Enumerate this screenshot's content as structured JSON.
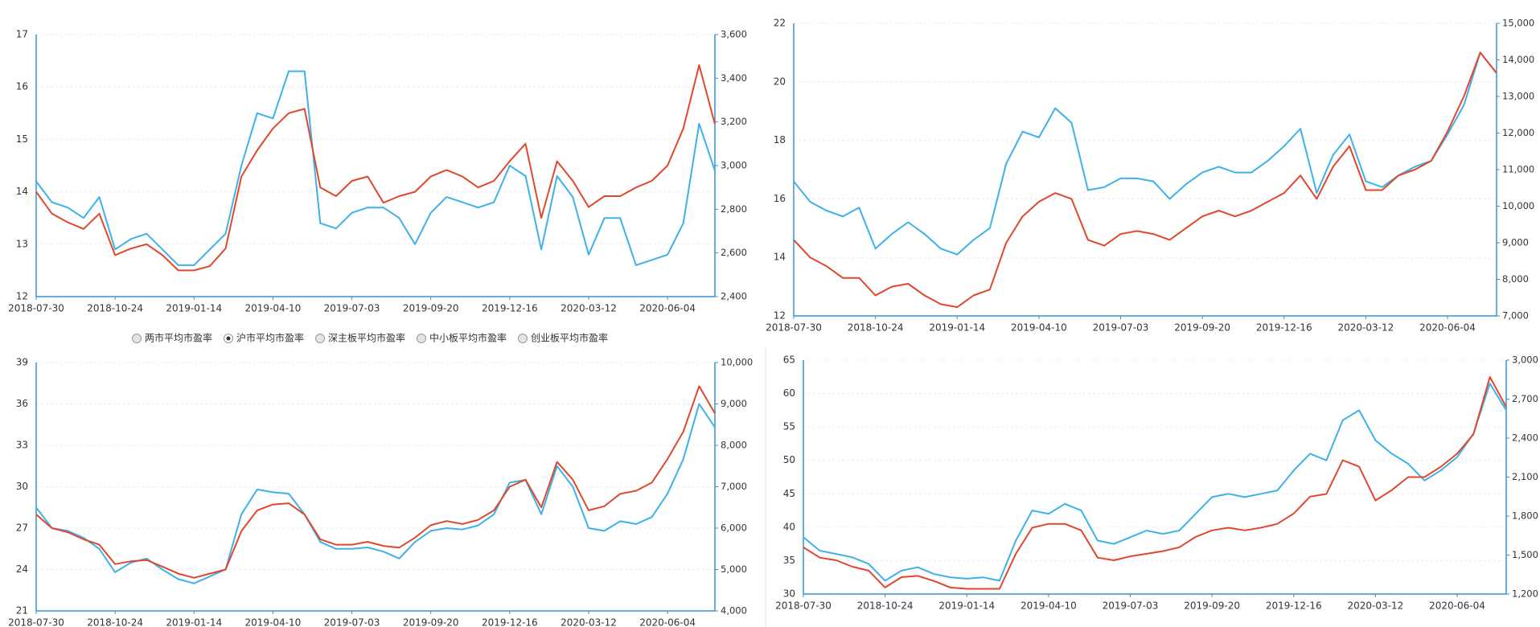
{
  "chart_data": [
    {
      "type": "line",
      "categories": [
        "2018-07-30",
        null,
        null,
        null,
        null,
        "2018-10-24",
        null,
        null,
        null,
        null,
        "2019-01-14",
        null,
        null,
        null,
        null,
        "2019-04-10",
        null,
        null,
        null,
        null,
        "2019-07-03",
        null,
        null,
        null,
        null,
        "2019-09-20",
        null,
        null,
        null,
        null,
        "2019-12-16",
        null,
        null,
        null,
        null,
        "2020-03-12",
        null,
        null,
        null,
        null,
        "2020-06-04",
        null,
        null,
        null
      ],
      "ylim": [
        12,
        17
      ],
      "yticks": [
        12,
        13,
        14,
        15,
        16,
        17
      ],
      "y2lim": [
        2400,
        3600
      ],
      "y2ticks": [
        {
          "value": 2400,
          "label": "2,400"
        },
        {
          "value": 2600,
          "label": "2,600"
        },
        {
          "value": 2800,
          "label": "2,800"
        },
        {
          "value": 3000,
          "label": "3,000"
        },
        {
          "value": 3200,
          "label": "3,200"
        },
        {
          "value": 3400,
          "label": "3,400"
        },
        {
          "value": 3600,
          "label": "3,600"
        }
      ],
      "grid": true,
      "series": [
        {
          "color": "#3eb1e8",
          "axis": "y",
          "values": [
            14.2,
            13.8,
            13.7,
            13.5,
            13.9,
            12.9,
            13.1,
            13.2,
            12.9,
            12.6,
            12.6,
            12.9,
            13.2,
            14.5,
            15.5,
            15.4,
            16.3,
            16.3,
            13.4,
            13.3,
            13.6,
            13.7,
            13.7,
            13.5,
            13.0,
            13.6,
            13.9,
            13.8,
            13.7,
            13.8,
            14.5,
            14.3,
            12.9,
            14.3,
            13.9,
            12.8,
            13.5,
            13.5,
            12.6,
            12.7,
            12.8,
            13.4,
            15.3,
            14.4
          ]
        },
        {
          "color": "#e0472c",
          "axis": "y2",
          "values": [
            2880,
            2780,
            2740,
            2710,
            2780,
            2590,
            2620,
            2640,
            2590,
            2520,
            2520,
            2540,
            2620,
            2950,
            3070,
            3170,
            3240,
            3260,
            2900,
            2860,
            2930,
            2950,
            2830,
            2860,
            2880,
            2950,
            2980,
            2950,
            2900,
            2930,
            3020,
            3100,
            2760,
            3020,
            2930,
            2810,
            2860,
            2860,
            2900,
            2930,
            3000,
            3170,
            3460,
            3190
          ]
        }
      ],
      "legend_options": [
        "两市平均市盈率",
        "沪市平均市盈率",
        "深主板平均市盈率",
        "中小板平均市盈率",
        "创业板平均市盈率"
      ],
      "selected": 1
    },
    {
      "type": "line",
      "categories": [
        "2018-07-30",
        null,
        null,
        null,
        null,
        "2018-10-24",
        null,
        null,
        null,
        null,
        "2019-01-14",
        null,
        null,
        null,
        null,
        "2019-04-10",
        null,
        null,
        null,
        null,
        "2019-07-03",
        null,
        null,
        null,
        null,
        "2019-09-20",
        null,
        null,
        null,
        null,
        "2019-12-16",
        null,
        null,
        null,
        null,
        "2020-03-12",
        null,
        null,
        null,
        null,
        "2020-06-04",
        null,
        null,
        null
      ],
      "ylim": [
        12,
        22
      ],
      "yticks": [
        12,
        14,
        16,
        18,
        20,
        22
      ],
      "y2lim": [
        7000,
        15000
      ],
      "y2ticks": [
        {
          "value": 7000,
          "label": "7,000"
        },
        {
          "value": 8000,
          "label": "8,000"
        },
        {
          "value": 9000,
          "label": "9,000"
        },
        {
          "value": 10000,
          "label": "10,000"
        },
        {
          "value": 11000,
          "label": "11,000"
        },
        {
          "value": 12000,
          "label": "12,000"
        },
        {
          "value": 13000,
          "label": "13,000"
        },
        {
          "value": 14000,
          "label": "14,000"
        },
        {
          "value": 15000,
          "label": "15,000"
        }
      ],
      "grid": true,
      "series": [
        {
          "color": "#3eb1e8",
          "axis": "y",
          "values": [
            16.6,
            15.9,
            15.6,
            15.4,
            15.7,
            14.3,
            14.8,
            15.2,
            14.8,
            14.3,
            14.1,
            14.6,
            15.0,
            17.2,
            18.3,
            18.1,
            19.1,
            18.6,
            16.3,
            16.4,
            16.7,
            16.7,
            16.6,
            16.0,
            16.5,
            16.9,
            17.1,
            16.9,
            16.9,
            17.3,
            17.8,
            18.4,
            16.2,
            17.5,
            18.2,
            16.6,
            16.4,
            16.8,
            17.1,
            17.3,
            18.2,
            19.2,
            21.0,
            20.3
          ]
        },
        {
          "color": "#e0472c",
          "axis": "y2",
          "values": [
            9080,
            8600,
            8360,
            8040,
            8040,
            7560,
            7800,
            7880,
            7560,
            7320,
            7240,
            7560,
            7720,
            9000,
            9720,
            10120,
            10360,
            10200,
            9080,
            8920,
            9240,
            9320,
            9240,
            9080,
            9400,
            9720,
            9880,
            9720,
            9880,
            10120,
            10360,
            10840,
            10200,
            11080,
            11640,
            10440,
            10440,
            10840,
            11000,
            11240,
            12040,
            13000,
            14200,
            13640
          ]
        }
      ]
    },
    {
      "type": "line",
      "categories": [
        "2018-07-30",
        null,
        null,
        null,
        null,
        "2018-10-24",
        null,
        null,
        null,
        null,
        "2019-01-14",
        null,
        null,
        null,
        null,
        "2019-04-10",
        null,
        null,
        null,
        null,
        "2019-07-03",
        null,
        null,
        null,
        null,
        "2019-09-20",
        null,
        null,
        null,
        null,
        "2019-12-16",
        null,
        null,
        null,
        null,
        "2020-03-12",
        null,
        null,
        null,
        null,
        "2020-06-04",
        null,
        null,
        null
      ],
      "ylim": [
        21,
        39
      ],
      "yticks": [
        21,
        24,
        27,
        30,
        33,
        36,
        39
      ],
      "y2lim": [
        4000,
        10000
      ],
      "y2ticks": [
        {
          "value": 4000,
          "label": "4,000"
        },
        {
          "value": 5000,
          "label": "5,000"
        },
        {
          "value": 6000,
          "label": "6,000"
        },
        {
          "value": 7000,
          "label": "7,000"
        },
        {
          "value": 8000,
          "label": "8,000"
        },
        {
          "value": 9000,
          "label": "9,000"
        },
        {
          "value": 10000,
          "label": "10,000"
        }
      ],
      "grid": true,
      "series": [
        {
          "color": "#3eb1e8",
          "axis": "y",
          "values": [
            28.5,
            27.0,
            26.8,
            26.3,
            25.5,
            23.8,
            24.5,
            24.8,
            24.0,
            23.3,
            23.0,
            23.5,
            24.0,
            28.0,
            29.8,
            29.6,
            29.5,
            28.0,
            26.0,
            25.5,
            25.5,
            25.6,
            25.3,
            24.8,
            26.0,
            26.8,
            27.0,
            26.9,
            27.2,
            28.0,
            30.3,
            30.5,
            28.0,
            31.5,
            30.0,
            27.0,
            26.8,
            27.5,
            27.3,
            27.8,
            29.5,
            32.0,
            36.0,
            34.3
          ]
        },
        {
          "color": "#e0472c",
          "axis": "y2",
          "values": [
            6330,
            6000,
            5900,
            5730,
            5600,
            5130,
            5200,
            5230,
            5070,
            4900,
            4800,
            4900,
            5000,
            5930,
            6430,
            6570,
            6600,
            6330,
            5730,
            5600,
            5600,
            5670,
            5570,
            5530,
            5770,
            6070,
            6170,
            6100,
            6200,
            6430,
            7000,
            7170,
            6500,
            7600,
            7170,
            6430,
            6530,
            6830,
            6900,
            7100,
            7670,
            8330,
            9430,
            8770
          ]
        }
      ]
    },
    {
      "type": "line",
      "categories": [
        "2018-07-30",
        null,
        null,
        null,
        null,
        "2018-10-24",
        null,
        null,
        null,
        null,
        "2019-01-14",
        null,
        null,
        null,
        null,
        "2019-04-10",
        null,
        null,
        null,
        null,
        "2019-07-03",
        null,
        null,
        null,
        null,
        "2019-09-20",
        null,
        null,
        null,
        null,
        "2019-12-16",
        null,
        null,
        null,
        null,
        "2020-03-12",
        null,
        null,
        null,
        null,
        "2020-06-04",
        null,
        null,
        null
      ],
      "ylim": [
        30,
        65
      ],
      "yticks": [
        30,
        35,
        40,
        45,
        50,
        55,
        60,
        65
      ],
      "y2lim": [
        1200,
        3000
      ],
      "y2ticks": [
        {
          "value": 1200,
          "label": "1,200"
        },
        {
          "value": 1500,
          "label": "1,500"
        },
        {
          "value": 1800,
          "label": "1,800"
        },
        {
          "value": 2100,
          "label": "2,100"
        },
        {
          "value": 2400,
          "label": "2,400"
        },
        {
          "value": 2700,
          "label": "2,700"
        },
        {
          "value": 3000,
          "label": "3,000"
        }
      ],
      "grid": true,
      "series": [
        {
          "color": "#3eb1e8",
          "axis": "y",
          "values": [
            38.5,
            36.5,
            36.0,
            35.5,
            34.5,
            32.0,
            33.5,
            34.0,
            33.0,
            32.5,
            32.3,
            32.5,
            32.0,
            38.0,
            42.5,
            42.0,
            43.5,
            42.5,
            38.0,
            37.5,
            38.5,
            39.5,
            39.0,
            39.5,
            42.0,
            44.5,
            45.0,
            44.5,
            45.0,
            45.5,
            48.5,
            51.0,
            50.0,
            56.0,
            57.5,
            53.0,
            51.0,
            49.5,
            47.0,
            48.5,
            50.5,
            54.0,
            61.5,
            57.5
          ]
        },
        {
          "color": "#e0472c",
          "axis": "y2",
          "values": [
            1560,
            1480,
            1460,
            1410,
            1380,
            1250,
            1330,
            1340,
            1300,
            1250,
            1240,
            1240,
            1240,
            1510,
            1710,
            1740,
            1740,
            1690,
            1480,
            1460,
            1490,
            1510,
            1530,
            1560,
            1640,
            1690,
            1710,
            1690,
            1710,
            1740,
            1820,
            1950,
            1970,
            2230,
            2180,
            1920,
            2000,
            2100,
            2100,
            2180,
            2280,
            2430,
            2870,
            2640
          ]
        }
      ],
      "legend_options": [
        "两市平均市盈率",
        "沪市平均市盈率",
        "深主板平均市盈率",
        "中小板平均市盈率",
        "创业板平均市盈率"
      ],
      "selected": 4
    }
  ]
}
